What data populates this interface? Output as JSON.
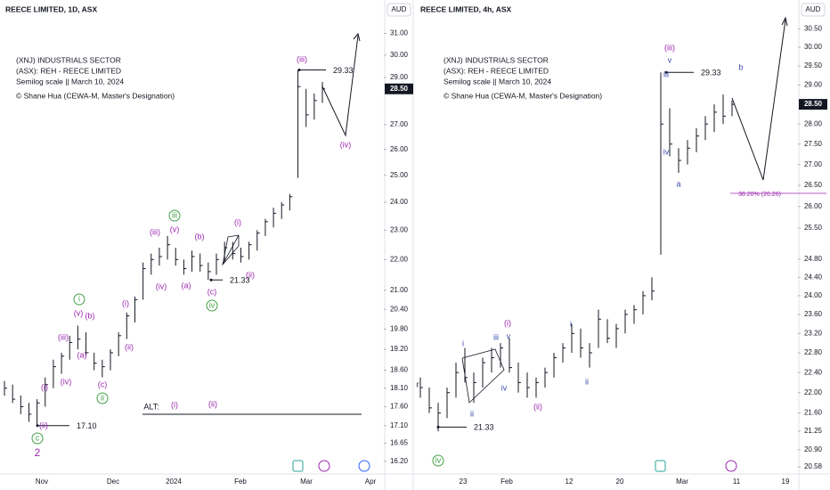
{
  "chart_data": [
    {
      "type": "ohlc",
      "title": "REECE LIMITED, 1D, ASX",
      "currency": "AUD",
      "log_scale": true,
      "color": "#131722",
      "info": [
        "(XNJ) INDUSTRIALS SECTOR",
        "(ASX): REH - REECE LIMITED",
        "Semilog scale || March 10, 2024",
        "© Shane Hua (CEWA-M, Master's Designation)"
      ],
      "ylim": [
        16.0,
        31.7
      ],
      "yticks": [
        {
          "value": 31,
          "label": "31.00"
        },
        {
          "value": 30,
          "label": "30.00"
        },
        {
          "value": 29,
          "label": "29.00"
        },
        {
          "value": 27,
          "label": "27.00"
        },
        {
          "value": 26,
          "label": "26.00"
        },
        {
          "value": 25,
          "label": "25.00"
        },
        {
          "value": 24,
          "label": "24.00"
        },
        {
          "value": 23,
          "label": "23.00"
        },
        {
          "value": 22,
          "label": "22.00"
        },
        {
          "value": 21,
          "label": "21.00"
        },
        {
          "value": 20.4,
          "label": "20.40"
        },
        {
          "value": 19.8,
          "label": "19.80"
        },
        {
          "value": 19.2,
          "label": "19.20"
        },
        {
          "value": 18.6,
          "label": "18.60"
        },
        {
          "value": 18.1,
          "label": "18.10"
        },
        {
          "value": 17.6,
          "label": "17.60"
        },
        {
          "value": 17.1,
          "label": "17.10"
        },
        16.65,
        {
          "value": 16.2,
          "label": "16.20"
        }
      ],
      "last_price": {
        "value": 28.5,
        "label": "28.50"
      },
      "x_labels": [
        "Nov",
        "Dec",
        "2024",
        "Feb",
        "Mar",
        "Apr"
      ],
      "high": [
        18.3,
        18.2,
        17.9,
        17.7,
        17.8,
        18.4,
        18.9,
        19.1,
        19.6,
        19.9,
        19.7,
        19.1,
        18.9,
        19.2,
        19.7,
        20.3,
        20.8,
        21.9,
        22.2,
        22.4,
        22.8,
        22.4,
        22.0,
        22.3,
        22.2,
        21.9,
        22.2,
        22.6,
        22.6,
        22.4,
        22.6,
        23.0,
        23.4,
        23.8,
        24.0,
        24.3,
        29.33,
        28.5,
        28.3,
        28.8
      ],
      "low": [
        17.9,
        17.7,
        17.4,
        17.2,
        17.1,
        17.6,
        18.1,
        18.5,
        18.9,
        19.2,
        19.0,
        18.6,
        18.4,
        18.6,
        19.0,
        19.5,
        20.0,
        20.7,
        21.5,
        21.8,
        22.0,
        21.8,
        21.5,
        21.6,
        21.6,
        21.33,
        21.5,
        21.9,
        22.0,
        21.9,
        22.0,
        22.3,
        22.8,
        23.1,
        23.4,
        23.7,
        24.9,
        26.9,
        27.2,
        27.9
      ],
      "close": [
        18.1,
        17.8,
        17.6,
        17.4,
        17.7,
        18.2,
        18.7,
        19.0,
        19.4,
        19.5,
        19.1,
        18.8,
        18.7,
        19.1,
        19.6,
        20.2,
        20.7,
        21.7,
        22.0,
        22.1,
        22.5,
        22.0,
        21.7,
        22.1,
        21.8,
        21.6,
        22.0,
        22.4,
        22.2,
        22.1,
        22.5,
        22.9,
        23.3,
        23.6,
        23.9,
        24.2,
        28.6,
        27.4,
        28.0,
        28.5
      ],
      "levels": [
        29.33,
        21.33,
        {
          "value": 17.1,
          "label": "17.10"
        }
      ],
      "annotations": [
        {
          "text": "(iii)",
          "color": "#9c27b0"
        },
        {
          "text": "(iv)",
          "color": "#9c27b0"
        },
        {
          "text": "(i)",
          "color": "#9c27b0"
        },
        {
          "text": "(ii)",
          "color": "#9c27b0"
        },
        {
          "text": "(iii)",
          "color": "#9c27b0"
        },
        {
          "text": "(iv)",
          "color": "#9c27b0"
        },
        {
          "text": "(v)",
          "color": "#9c27b0"
        },
        {
          "text": "(a)",
          "color": "#9c27b0"
        },
        {
          "text": "(b)",
          "color": "#9c27b0"
        },
        {
          "text": "(c)",
          "color": "#9c27b0"
        },
        {
          "text": "(i)",
          "color": "#9c27b0"
        },
        {
          "text": "(ii)",
          "color": "#9c27b0"
        },
        {
          "text": "(iii)",
          "color": "#9c27b0"
        },
        {
          "text": "(iv)",
          "color": "#9c27b0"
        },
        {
          "text": "(v)",
          "color": "#9c27b0"
        },
        {
          "text": "(b)",
          "color": "#9c27b0"
        },
        {
          "text": "(a)",
          "color": "#9c27b0"
        },
        {
          "text": "(c)",
          "color": "#9c27b0"
        },
        {
          "text": "(i)",
          "color": "#9c27b0"
        },
        {
          "text": "(ii)",
          "color": "#9c27b0"
        },
        {
          "text": "2",
          "color": "#9c27b0"
        },
        {
          "text": "iii",
          "color": "#43a047"
        },
        {
          "text": "iv",
          "color": "#43a047"
        },
        {
          "text": "i",
          "color": "#43a047"
        },
        {
          "text": "ii",
          "color": "#43a047"
        },
        {
          "text": "c",
          "color": "#43a047"
        },
        {
          "text": "ALT:",
          "color": "#131722"
        },
        {
          "text": "(i)",
          "color": "#9c27b0"
        },
        {
          "text": "(ii)",
          "color": "#9c27b0"
        }
      ]
    },
    {
      "type": "ohlc",
      "title": "REECE LIMITED, 4h, ASX",
      "currency": "AUD",
      "log_scale": true,
      "color": "#131722",
      "info": [
        "(XNJ) INDUSTRIALS SECTOR",
        "(ASX): REH - REECE LIMITED",
        "Semilog scale || March 10, 2024",
        "© Shane Hua (CEWA-M, Master's Designation)"
      ],
      "ylim": [
        20.45,
        31.0
      ],
      "yticks": [
        {
          "value": 30.5,
          "label": "30.50"
        },
        {
          "value": 30,
          "label": "30.00"
        },
        {
          "value": 29.5,
          "label": "29.50"
        },
        {
          "value": 29,
          "label": "29.00"
        },
        {
          "value": 28,
          "label": "28.00"
        },
        {
          "value": 27.5,
          "label": "27.50"
        },
        {
          "value": 27,
          "label": "27.00"
        },
        {
          "value": 26.5,
          "label": "26.50"
        },
        {
          "value": 26,
          "label": "26.00"
        },
        {
          "value": 25.5,
          "label": "25.50"
        },
        {
          "value": 24.8,
          "label": "24.80"
        },
        {
          "value": 24.4,
          "label": "24.40"
        },
        {
          "value": 24,
          "label": "24.00"
        },
        {
          "value": 23.6,
          "label": "23.60"
        },
        {
          "value": 23.2,
          "label": "23.20"
        },
        {
          "value": 22.8,
          "label": "22.80"
        },
        {
          "value": 22.4,
          "label": "22.40"
        },
        {
          "value": 22,
          "label": "22.00"
        },
        {
          "value": 21.6,
          "label": "21.60"
        },
        21.25,
        {
          "value": 20.9,
          "label": "20.90"
        },
        20.58
      ],
      "last_price": {
        "value": 28.5,
        "label": "28.50"
      },
      "x_labels": [
        "23",
        "Feb",
        "12",
        "20",
        "Mar",
        "11",
        "19"
      ],
      "high": [
        22.3,
        22.1,
        21.8,
        22.1,
        22.6,
        22.9,
        22.4,
        22.7,
        22.9,
        23.0,
        23.1,
        22.6,
        22.4,
        22.3,
        22.5,
        22.8,
        23.0,
        23.4,
        23.3,
        23.0,
        23.7,
        23.5,
        23.4,
        23.7,
        23.8,
        24.1,
        24.4,
        29.33,
        28.4,
        27.4,
        27.6,
        27.9,
        28.2,
        28.5,
        28.75,
        28.6
      ],
      "low": [
        21.9,
        21.6,
        21.25,
        21.5,
        21.9,
        22.2,
        21.8,
        22.1,
        22.4,
        22.5,
        22.4,
        22.0,
        21.9,
        21.9,
        22.1,
        22.3,
        22.6,
        22.8,
        22.7,
        22.5,
        22.9,
        23.0,
        22.9,
        23.2,
        23.4,
        23.6,
        23.9,
        24.9,
        27.2,
        26.8,
        27.0,
        27.3,
        27.6,
        27.8,
        28.0,
        28.2
      ],
      "close": [
        22.1,
        21.7,
        21.6,
        22.0,
        22.4,
        22.3,
        22.2,
        22.6,
        22.7,
        22.9,
        22.5,
        22.2,
        22.1,
        22.2,
        22.4,
        22.7,
        22.9,
        23.2,
        22.9,
        22.8,
        23.5,
        23.1,
        23.3,
        23.6,
        23.7,
        24.0,
        24.1,
        28.0,
        27.5,
        27.1,
        27.4,
        27.7,
        28.0,
        28.3,
        28.2,
        28.5
      ],
      "levels": [
        29.33,
        21.33
      ],
      "fib_label": "38.20% (26.26)",
      "annotations": [
        {
          "text": "(iii)",
          "color": "#9c27b0"
        },
        {
          "text": "v",
          "color": "#3949ab"
        },
        {
          "text": "iii",
          "color": "#3949ab"
        },
        {
          "text": "iv",
          "color": "#3949ab"
        },
        {
          "text": "a",
          "color": "#3949ab"
        },
        {
          "text": "b",
          "color": "#3949ab"
        },
        {
          "text": "(i)",
          "color": "#9c27b0"
        },
        {
          "text": "v",
          "color": "#3949ab"
        },
        {
          "text": "iii",
          "color": "#3949ab"
        },
        {
          "text": "i",
          "color": "#3949ab"
        },
        {
          "text": "iv",
          "color": "#3949ab"
        },
        {
          "text": "ii",
          "color": "#3949ab"
        },
        {
          "text": "(ii)",
          "color": "#9c27b0"
        },
        {
          "text": "i",
          "color": "#3949ab"
        },
        {
          "text": "ii",
          "color": "#3949ab"
        },
        {
          "text": "r",
          "color": "#131722"
        },
        {
          "text": "iv",
          "color": "#43a047"
        }
      ]
    }
  ]
}
